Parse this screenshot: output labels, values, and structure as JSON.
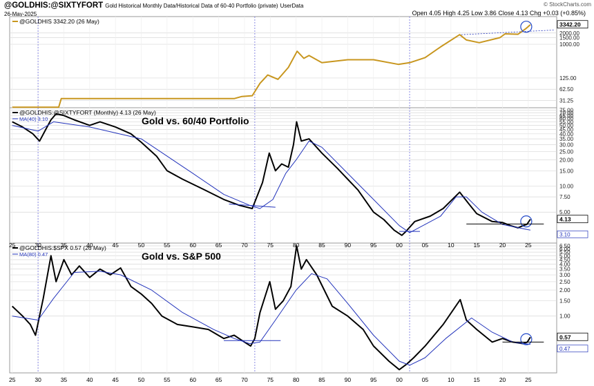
{
  "header": {
    "symbol": "@GOLDHIS:@SIXTYFORT",
    "description": "Gold Historical Monthly Data/Historical Data of 60-40 Portfolio (private)",
    "tag": "UserData",
    "date": "26-May-2025",
    "source": "© StockCharts.com",
    "open_label": "Open",
    "open": "4.05",
    "high_label": "High",
    "high": "4.25",
    "low_label": "Low",
    "low": "3.86",
    "close_label": "Close",
    "close": "4.13",
    "chg_label": "Chg",
    "chg": "+0.03 (+0.85%)"
  },
  "colors": {
    "gold": "#c8961e",
    "price": "#000000",
    "ma": "#2233bb",
    "grid": "#d8d8d8",
    "vline": "#6b6bdd"
  },
  "chart_data": [
    {
      "type": "line",
      "legend": "@GOLDHIS 3342.20 (26 May)",
      "scale": "log",
      "ylim": [
        20,
        5500
      ],
      "yticks": [
        31.25,
        62.5,
        125.0,
        1000.0,
        1500.0,
        2000.0
      ],
      "last_value_label": "3342.20",
      "series": [
        {
          "name": "@GOLDHIS",
          "x": [
            1925,
            1934,
            1934.5,
            1968,
            1969.5,
            1971.5,
            1973,
            1974.5,
            1976.5,
            1978.5,
            1980.2,
            1981.5,
            1982.5,
            1985,
            1990,
            1995,
            1999.8,
            2002,
            2005,
            2008,
            2011.7,
            2013,
            2015.5,
            2019.5,
            2020.5,
            2023,
            2024.5,
            2025.4
          ],
          "y": [
            20.67,
            20.67,
            35,
            35,
            40,
            42,
            90,
            150,
            115,
            240,
            650,
            420,
            500,
            320,
            385,
            385,
            290,
            320,
            440,
            850,
            1800,
            1300,
            1100,
            1500,
            1900,
            1850,
            2600,
            3342
          ]
        }
      ]
    },
    {
      "type": "line",
      "legend": "@GOLDHIS:@SIXTYFORT (Monthly) 4.13 (26 May)",
      "title": "Gold vs. 60/40 Portfolio",
      "ma_label": "MA(40) 3.10",
      "scale": "log",
      "ylim": [
        2.2,
        80
      ],
      "yticks": [
        5.0,
        7.5,
        10.0,
        15.0,
        20.0,
        25.0,
        30.0,
        35.0,
        40.0,
        45.0,
        50.0,
        55.0,
        60.0,
        65.0,
        70.0,
        75.0
      ],
      "last_value_label": "4.13",
      "ma_value_label": "3.10",
      "series": [
        {
          "name": "@GOLDHIS:@SIXTYFORT",
          "x": [
            1925,
            1927,
            1929,
            1930.3,
            1931.5,
            1932.5,
            1933.5,
            1935,
            1937,
            1940,
            1942,
            1945,
            1948,
            1950,
            1953,
            1955,
            1958,
            1962,
            1966,
            1969,
            1971.5,
            1973.5,
            1974.8,
            1976,
            1977.2,
            1978.5,
            1979.5,
            1980.1,
            1981,
            1982.5,
            1985,
            1988,
            1990,
            1992,
            1995,
            1997,
            1999,
            2000.5,
            2001.3,
            2003,
            2006,
            2008.5,
            2011.7,
            2013.5,
            2015,
            2018,
            2020,
            2021.5,
            2023,
            2024,
            2024.7,
            2025.4
          ],
          "y": [
            55,
            48,
            40,
            33,
            45,
            58,
            68,
            65,
            58,
            50,
            55,
            48,
            40,
            32,
            22,
            15,
            12,
            9.2,
            7,
            6,
            5.5,
            11,
            24,
            15,
            18,
            16.5,
            30,
            55,
            33,
            35,
            24,
            16,
            12,
            9,
            5,
            4.1,
            3.1,
            2.7,
            3.0,
            3.9,
            4.5,
            5.5,
            8.5,
            6.2,
            4.8,
            3.9,
            3.8,
            3.5,
            3.3,
            3.5,
            3.6,
            4.13
          ]
        },
        {
          "name": "MA(40)",
          "x": [
            1925,
            1930,
            1933,
            1940,
            1950,
            1960,
            1966,
            1971,
            1973,
            1975.5,
            1978,
            1980,
            1982.5,
            1985,
            1990,
            1995,
            2000,
            2002,
            2008,
            2011,
            2013,
            2016,
            2020,
            2025.4
          ],
          "y": [
            50,
            43,
            55,
            48,
            35,
            14,
            8,
            6,
            5.5,
            7,
            14,
            20,
            33,
            28,
            14,
            7,
            3.5,
            2.9,
            4.5,
            7.5,
            7.5,
            5,
            3.6,
            3.1
          ]
        }
      ]
    },
    {
      "type": "line",
      "legend": "@GOLDHIS:$SPX 0.57 (26 May)",
      "title": "Gold vs. S&P 500",
      "ma_label": "MA(80) 0.47",
      "scale": "log",
      "ylim": [
        0.22,
        7.0
      ],
      "yticks": [
        1.0,
        1.5,
        2.0,
        2.5,
        3.0,
        3.5,
        4.0,
        4.5,
        5.0,
        5.5,
        6.0,
        6.5
      ],
      "last_value_label": "0.57",
      "ma_value_label": "0.47",
      "series": [
        {
          "name": "@GOLDHIS:$SPX",
          "x": [
            1925,
            1927,
            1928.5,
            1929.5,
            1931,
            1932.5,
            1933.5,
            1935,
            1936.5,
            1938,
            1940,
            1942,
            1944,
            1946,
            1948,
            1950,
            1952,
            1954,
            1957,
            1960,
            1963,
            1966,
            1968,
            1970,
            1971.2,
            1972,
            1973,
            1974.9,
            1976,
            1977.5,
            1979,
            1980.1,
            1981,
            1982,
            1984,
            1987,
            1990,
            1993,
            1995,
            1998,
            2000,
            2001.5,
            2002.8,
            2005,
            2008.5,
            2011.8,
            2013,
            2015,
            2018,
            2020,
            2022,
            2024,
            2024.8,
            2025.4
          ],
          "y": [
            1.3,
            1.0,
            0.8,
            0.6,
            1.6,
            5.0,
            2.5,
            4.5,
            3.0,
            3.8,
            2.8,
            3.5,
            3.0,
            3.6,
            2.2,
            1.8,
            1.4,
            1.0,
            0.8,
            0.75,
            0.7,
            0.55,
            0.6,
            0.5,
            0.45,
            0.55,
            1.1,
            2.5,
            1.2,
            1.5,
            2.2,
            6.5,
            3.5,
            4.5,
            3.0,
            1.3,
            1.0,
            0.7,
            0.45,
            0.3,
            0.24,
            0.28,
            0.33,
            0.45,
            0.8,
            1.55,
            0.9,
            0.7,
            0.5,
            0.55,
            0.5,
            0.48,
            0.5,
            0.57
          ]
        },
        {
          "name": "MA(80)",
          "x": [
            1925,
            1930,
            1933,
            1937,
            1942,
            1946,
            1952,
            1958,
            1964,
            1968,
            1971,
            1973,
            1976,
            1980,
            1983,
            1986,
            1990,
            1995,
            2000,
            2002,
            2005,
            2009,
            2014,
            2018,
            2022,
            2025.4
          ],
          "y": [
            1.0,
            0.9,
            1.6,
            3.2,
            3.3,
            3.0,
            2.0,
            1.1,
            0.7,
            0.55,
            0.48,
            0.5,
            0.9,
            2.0,
            3.1,
            2.7,
            1.4,
            0.6,
            0.3,
            0.27,
            0.33,
            0.55,
            0.95,
            0.65,
            0.5,
            0.47
          ]
        }
      ]
    }
  ],
  "x_axis": {
    "xlim": [
      1924.5,
      2030.5
    ],
    "tick_years": [
      1925,
      1930,
      1935,
      1940,
      1945,
      1950,
      1955,
      1960,
      1965,
      1970,
      1975,
      1980,
      1985,
      1990,
      1995,
      2000,
      2005,
      2010,
      2015,
      2020,
      2025
    ],
    "tick_labels": [
      "25",
      "30",
      "35",
      "40",
      "45",
      "50",
      "55",
      "60",
      "65",
      "70",
      "75",
      "80",
      "85",
      "90",
      "95",
      "00",
      "05",
      "10",
      "15",
      "20",
      "25"
    ],
    "vertical_marker_years": [
      1930,
      1972,
      2002
    ]
  }
}
